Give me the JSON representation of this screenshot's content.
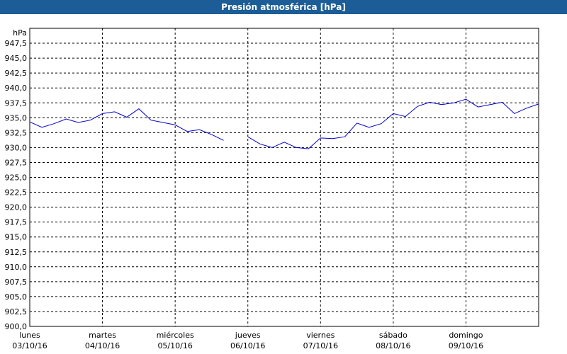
{
  "chart_data": {
    "type": "line",
    "title": "Presión atmosférica [hPa]",
    "y_unit": "hPa",
    "x_labels": [
      {
        "day": "lunes",
        "date": "03/10/16"
      },
      {
        "day": "martes",
        "date": "04/10/16"
      },
      {
        "day": "miércoles",
        "date": "05/10/16"
      },
      {
        "day": "jueves",
        "date": "06/10/16"
      },
      {
        "day": "viernes",
        "date": "07/10/16"
      },
      {
        "day": "sábado",
        "date": "08/10/16"
      },
      {
        "day": "domingo",
        "date": "09/10/16"
      }
    ],
    "color": "#0000cc",
    "values": [
      934.3,
      933.4,
      934.0,
      934.8,
      934.2,
      934.6,
      935.7,
      936.0,
      935.1,
      936.5,
      934.6,
      934.2,
      933.8,
      932.7,
      933.0,
      932.2,
      931.2,
      null,
      931.8,
      930.6,
      930.0,
      930.9,
      930.0,
      929.8,
      931.6,
      931.5,
      931.8,
      934.1,
      933.4,
      934.0,
      935.7,
      935.2,
      936.9,
      937.6,
      937.2,
      937.5,
      938.1,
      936.8,
      937.2,
      937.6,
      935.7,
      936.6,
      937.3
    ],
    "ylim": [
      900,
      950
    ],
    "yticks": [
      {
        "value": 900,
        "label": "900,0"
      },
      {
        "value": 902.5,
        "label": "902,5"
      },
      {
        "value": 905,
        "label": "905,0"
      },
      {
        "value": 907.5,
        "label": "907,5"
      },
      {
        "value": 910,
        "label": "910,0"
      },
      {
        "value": 912.5,
        "label": "912,5"
      },
      {
        "value": 915,
        "label": "915,0"
      },
      {
        "value": 917.5,
        "label": "917,5"
      },
      {
        "value": 920,
        "label": "920,0"
      },
      {
        "value": 922.5,
        "label": "922,5"
      },
      {
        "value": 925,
        "label": "925,0"
      },
      {
        "value": 927.5,
        "label": "927,5"
      },
      {
        "value": 930,
        "label": "930,0"
      },
      {
        "value": 932.5,
        "label": "932,5"
      },
      {
        "value": 935,
        "label": "935,0"
      },
      {
        "value": 937.5,
        "label": "937,5"
      },
      {
        "value": 940,
        "label": "940,0"
      },
      {
        "value": 942.5,
        "label": "942,5"
      },
      {
        "value": 945,
        "label": "945,0"
      },
      {
        "value": 947.5,
        "label": "947,5"
      }
    ],
    "grid": true
  }
}
